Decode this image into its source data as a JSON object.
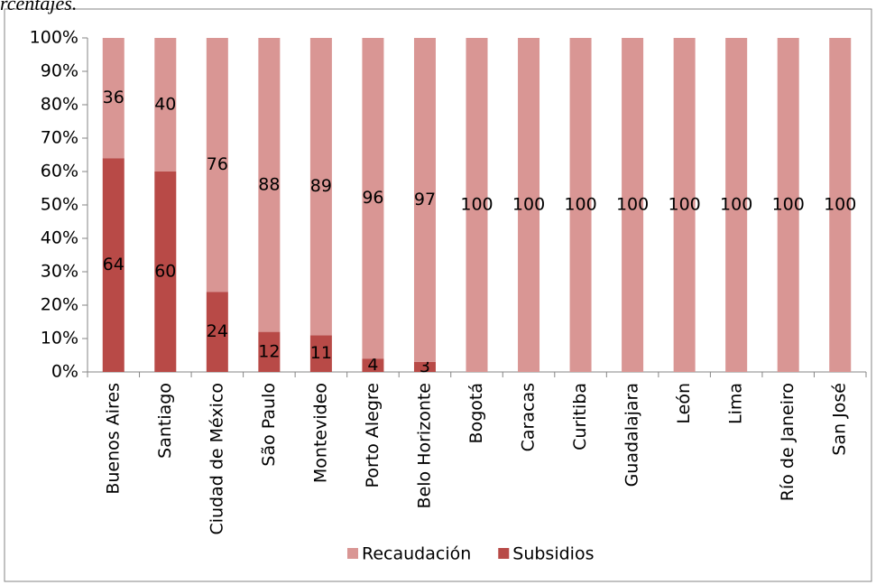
{
  "caption": "rcentajes.",
  "chart_data": {
    "type": "stacked-bar-100",
    "categories": [
      "Buenos Aires",
      "Santiago",
      "Ciudad de México",
      "São Paulo",
      "Montevideo",
      "Porto Alegre",
      "Belo Horizonte",
      "Bogotá",
      "Caracas",
      "Curitiba",
      "Guadalajara",
      "León",
      "Lima",
      "Río de Janeiro",
      "San José"
    ],
    "series": [
      {
        "name": "Recaudación",
        "color": "#d99694",
        "values": [
          36,
          40,
          76,
          88,
          89,
          96,
          97,
          100,
          100,
          100,
          100,
          100,
          100,
          100,
          100
        ]
      },
      {
        "name": "Subsidios",
        "color": "#b84a47",
        "values": [
          64,
          60,
          24,
          12,
          11,
          4,
          3,
          0,
          0,
          0,
          0,
          0,
          0,
          0,
          0
        ]
      }
    ],
    "ylim": [
      0,
      100
    ],
    "yticks": [
      {
        "value": 0,
        "label": "0%"
      },
      {
        "value": 10,
        "label": "10%"
      },
      {
        "value": 20,
        "label": "20%"
      },
      {
        "value": 30,
        "label": "30%"
      },
      {
        "value": 40,
        "label": "40%"
      },
      {
        "value": 50,
        "label": "50%"
      },
      {
        "value": 60,
        "label": "60%"
      },
      {
        "value": 70,
        "label": "70%"
      },
      {
        "value": 80,
        "label": "80%"
      },
      {
        "value": 90,
        "label": "90%"
      },
      {
        "value": 100,
        "label": "100%"
      }
    ],
    "grid": false,
    "legend": "bottom"
  }
}
